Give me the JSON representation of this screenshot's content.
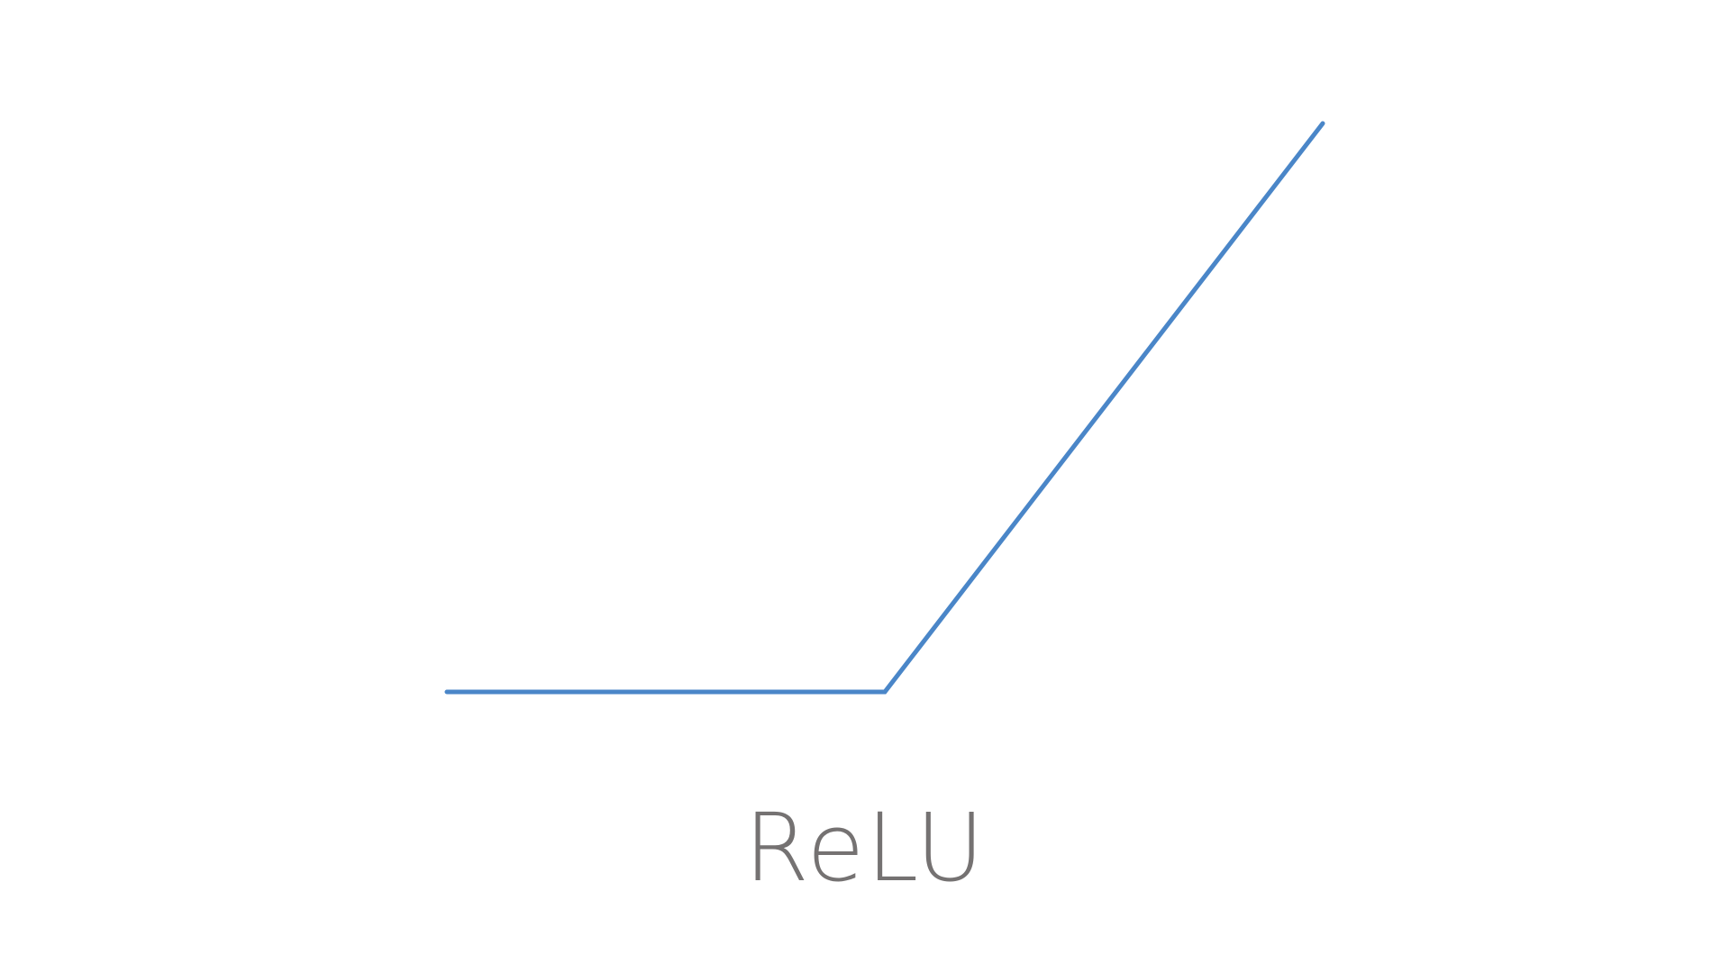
{
  "chart_data": {
    "type": "line",
    "title": "ReLU",
    "xlabel": "",
    "ylabel": "",
    "grid": false,
    "legend": "none",
    "series": [
      {
        "x": [
          -1,
          0,
          1
        ],
        "y": [
          0,
          0,
          1.27
        ]
      }
    ],
    "xlim": [
      -1,
      1
    ],
    "ylim": [
      0,
      1.27
    ],
    "colors": {
      "line": "#4a86c8",
      "title": "#757272",
      "background": "#ffffff"
    }
  }
}
